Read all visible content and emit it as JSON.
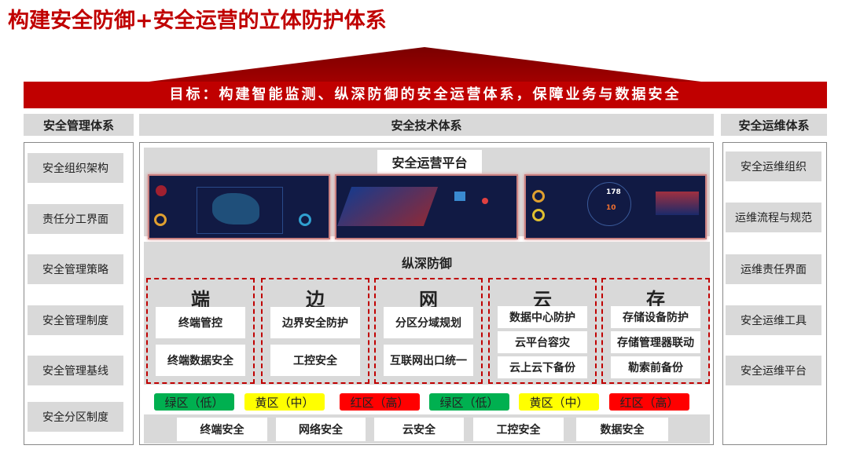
{
  "title": "构建安全防御+安全运营的立体防护体系",
  "goal": "目标：构建智能监测、纵深防御的安全运营体系，保障业务与数据安全",
  "left": {
    "header": "安全管理体系",
    "items": [
      "安全组织架构",
      "责任分工界面",
      "安全管理策略",
      "安全管理制度",
      "安全管理基线",
      "安全分区制度"
    ]
  },
  "center": {
    "header": "安全技术体系",
    "platform": "安全运营平台",
    "screen_values": [
      "178",
      "10"
    ],
    "defense": "纵深防御",
    "columns": [
      {
        "char": "端",
        "items": [
          "终端管控",
          "终端数据安全"
        ]
      },
      {
        "char": "边",
        "items": [
          "边界安全防护",
          "工控安全"
        ]
      },
      {
        "char": "网",
        "items": [
          "分区分域规划",
          "互联网出口统一"
        ]
      },
      {
        "char": "云",
        "items": [
          "数据中心防护",
          "云平台容灾",
          "云上云下备份"
        ]
      },
      {
        "char": "存",
        "items": [
          "存储设备防护",
          "存储管理器联动",
          "勒索前备份"
        ]
      }
    ],
    "zones": [
      {
        "label": "绿区（低）",
        "color": "#00b050"
      },
      {
        "label": "黄区（中）",
        "color": "#ffff00"
      },
      {
        "label": "红区（高）",
        "color": "#ff0000"
      },
      {
        "label": "绿区（低）",
        "color": "#00b050"
      },
      {
        "label": "黄区（中）",
        "color": "#ffff00"
      },
      {
        "label": "红区（高）",
        "color": "#ff0000"
      }
    ],
    "domains": [
      "终端安全",
      "网络安全",
      "云安全",
      "工控安全",
      "数据安全"
    ]
  },
  "right": {
    "header": "安全运维体系",
    "items": [
      "安全运维组织",
      "运维流程与规范",
      "运维责任界面",
      "安全运维工具",
      "安全运维平台"
    ]
  },
  "colors": {
    "brand_red": "#c00000",
    "panel_gray": "#d9d9d9"
  }
}
